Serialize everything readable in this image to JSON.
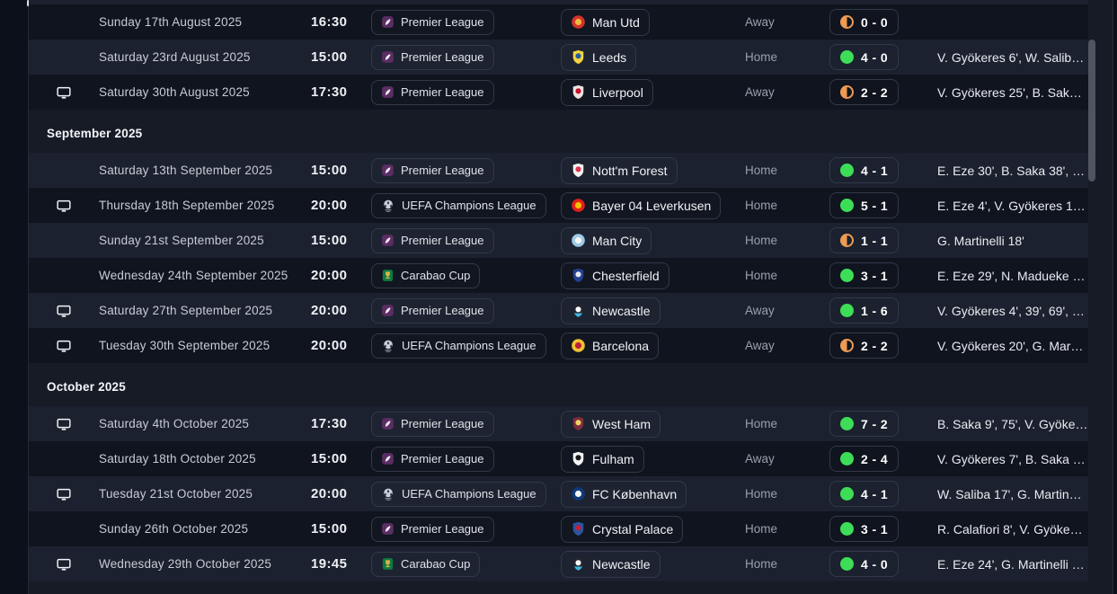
{
  "colors": {
    "page_bg": "#161b26",
    "row_dark": "#0f141e",
    "row_light": "#1b212e",
    "win_green": "#3ddd58",
    "draw_orange": "#ef9b52"
  },
  "competitions": {
    "Premier League": {
      "icon": "premier-league-icon",
      "c1": "#5a2d63",
      "c2": "#f2ecf4"
    },
    "UEFA Champions League": {
      "icon": "champions-league-icon",
      "c1": "#c9cfd9",
      "c2": "#2a3140"
    },
    "Carabao Cup": {
      "icon": "carabao-cup-icon",
      "c1": "#0e7a41",
      "c2": "#d9b34c"
    }
  },
  "teams": {
    "Man Utd": {
      "shape": "circle",
      "c1": "#d2322d",
      "c2": "#f0b93c"
    },
    "Leeds": {
      "shape": "shield",
      "c1": "#f2d53f",
      "c2": "#275ba6"
    },
    "Liverpool": {
      "shape": "shield",
      "c1": "#ece4e0",
      "c2": "#c8102e"
    },
    "Nott'm Forest": {
      "shape": "shield",
      "c1": "#f4f2f0",
      "c2": "#e0314e"
    },
    "Bayer 04 Leverkusen": {
      "shape": "circle",
      "c1": "#e3201b",
      "c2": "#f2c100"
    },
    "Man City": {
      "shape": "circle",
      "c1": "#9fc9e7",
      "c2": "#f8f8f6"
    },
    "Chesterfield": {
      "shape": "shield",
      "c1": "#24418f",
      "c2": "#e8e9ee"
    },
    "Newcastle": {
      "shape": "shield",
      "c1": "#23252d",
      "c2": "#ffffff",
      "c3": "#3fb4e0"
    },
    "Barcelona": {
      "shape": "circle",
      "c1": "#f0c330",
      "c2": "#b8203e"
    },
    "West Ham": {
      "shape": "shield",
      "c1": "#7d2c3e",
      "c2": "#f2d45c"
    },
    "Fulham": {
      "shape": "shield",
      "c1": "#f4f4f4",
      "c2": "#1a1a1a"
    },
    "FC København": {
      "shape": "circle",
      "c1": "#0f3a78",
      "c2": "#f2f4f8"
    },
    "Crystal Palace": {
      "shape": "shield",
      "c1": "#2a55a0",
      "c2": "#c0203c"
    }
  },
  "months": [
    {
      "header": "",
      "fixtures": [
        {
          "tv": false,
          "date": "Sunday 17th August 2025",
          "time": "16:30",
          "competition": "Premier League",
          "opponent": "Man Utd",
          "venue": "Away",
          "outcome": "draw",
          "score": "0 - 0",
          "scorers": "",
          "shade": "dark"
        },
        {
          "tv": false,
          "date": "Saturday 23rd August 2025",
          "time": "15:00",
          "competition": "Premier League",
          "opponent": "Leeds",
          "venue": "Home",
          "outcome": "win",
          "score": "4 - 0",
          "scorers": "V. Gyökeres 6', W. Salib…",
          "shade": "light"
        },
        {
          "tv": true,
          "date": "Saturday 30th August 2025",
          "time": "17:30",
          "competition": "Premier League",
          "opponent": "Liverpool",
          "venue": "Away",
          "outcome": "draw",
          "score": "2 - 2",
          "scorers": "V. Gyökeres 25', B. Sak…",
          "shade": "dark"
        }
      ]
    },
    {
      "header": "September 2025",
      "fixtures": [
        {
          "tv": false,
          "date": "Saturday 13th September 2025",
          "time": "15:00",
          "competition": "Premier League",
          "opponent": "Nott'm Forest",
          "venue": "Home",
          "outcome": "win",
          "score": "4 - 1",
          "scorers": "E. Eze 30', B. Saka 38', …",
          "shade": "light"
        },
        {
          "tv": true,
          "date": "Thursday 18th September 2025",
          "time": "20:00",
          "competition": "UEFA Champions League",
          "opponent": "Bayer 04 Leverkusen",
          "venue": "Home",
          "outcome": "win",
          "score": "5 - 1",
          "scorers": "E. Eze 4', V. Gyökeres 1…",
          "shade": "dark"
        },
        {
          "tv": false,
          "date": "Sunday 21st September 2025",
          "time": "15:00",
          "competition": "Premier League",
          "opponent": "Man City",
          "venue": "Home",
          "outcome": "draw",
          "score": "1 - 1",
          "scorers": "G. Martinelli 18'",
          "shade": "light"
        },
        {
          "tv": false,
          "date": "Wednesday 24th September 2025",
          "time": "20:00",
          "competition": "Carabao Cup",
          "opponent": "Chesterfield",
          "venue": "Home",
          "outcome": "win",
          "score": "3 - 1",
          "scorers": "E. Eze 29', N. Madueke …",
          "shade": "dark"
        },
        {
          "tv": true,
          "date": "Saturday 27th September 2025",
          "time": "20:00",
          "competition": "Premier League",
          "opponent": "Newcastle",
          "venue": "Away",
          "outcome": "win",
          "score": "1 - 6",
          "scorers": "V. Gyökeres 4', 39', 69', …",
          "shade": "light"
        },
        {
          "tv": true,
          "date": "Tuesday 30th September 2025",
          "time": "20:00",
          "competition": "UEFA Champions League",
          "opponent": "Barcelona",
          "venue": "Away",
          "outcome": "draw",
          "score": "2 - 2",
          "scorers": "V. Gyökeres 20', G. Mar…",
          "shade": "dark"
        }
      ]
    },
    {
      "header": "October 2025",
      "fixtures": [
        {
          "tv": true,
          "date": "Saturday 4th October 2025",
          "time": "17:30",
          "competition": "Premier League",
          "opponent": "West Ham",
          "venue": "Home",
          "outcome": "win",
          "score": "7 - 2",
          "scorers": "B. Saka 9', 75', V. Gyöke…",
          "shade": "light"
        },
        {
          "tv": false,
          "date": "Saturday 18th October 2025",
          "time": "15:00",
          "competition": "Premier League",
          "opponent": "Fulham",
          "venue": "Away",
          "outcome": "win",
          "score": "2 - 4",
          "scorers": "V. Gyökeres 7', B. Saka …",
          "shade": "dark"
        },
        {
          "tv": true,
          "date": "Tuesday 21st October 2025",
          "time": "20:00",
          "competition": "UEFA Champions League",
          "opponent": "FC København",
          "venue": "Home",
          "outcome": "win",
          "score": "4 - 1",
          "scorers": "W. Saliba 17', G. Martin…",
          "shade": "light"
        },
        {
          "tv": false,
          "date": "Sunday 26th October 2025",
          "time": "15:00",
          "competition": "Premier League",
          "opponent": "Crystal Palace",
          "venue": "Home",
          "outcome": "win",
          "score": "3 - 1",
          "scorers": "R. Calafiori 8', V. Gyöke…",
          "shade": "dark"
        },
        {
          "tv": true,
          "date": "Wednesday 29th October 2025",
          "time": "19:45",
          "competition": "Carabao Cup",
          "opponent": "Newcastle",
          "venue": "Home",
          "outcome": "win",
          "score": "4 - 0",
          "scorers": "E. Eze 24', G. Martinelli …",
          "shade": "light"
        }
      ]
    }
  ]
}
